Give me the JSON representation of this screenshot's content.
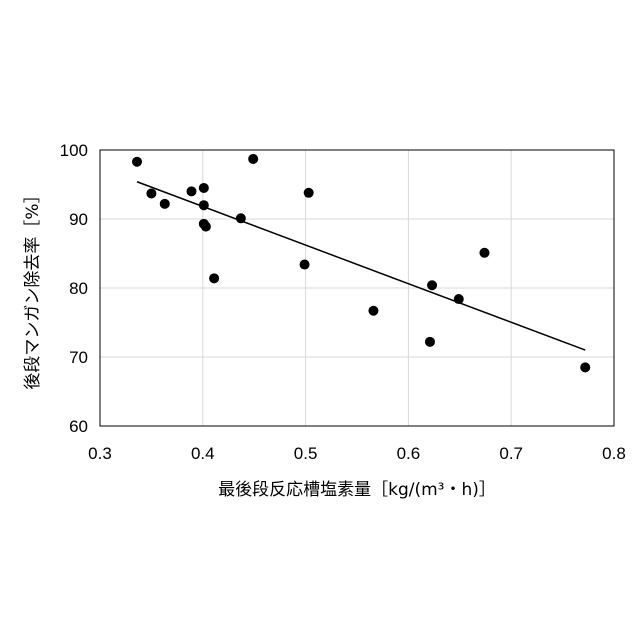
{
  "chart_data": {
    "type": "scatter",
    "title": "",
    "xlabel": "最後段反応槽塩素量［kg/(m³・h)］",
    "ylabel": "後段マンガン除去率［%］",
    "xlim": [
      0.3,
      0.8
    ],
    "ylim": [
      60,
      100
    ],
    "xticks": [
      0.3,
      0.4,
      0.5,
      0.6,
      0.7,
      0.8
    ],
    "yticks": [
      60,
      70,
      80,
      90,
      100
    ],
    "xtick_labels": [
      "0.3",
      "0.4",
      "0.5",
      "0.6",
      "0.7",
      "0.8"
    ],
    "ytick_labels": [
      "60",
      "70",
      "80",
      "90",
      "100"
    ],
    "grid": true,
    "legend": "none",
    "points": [
      {
        "x": 0.336,
        "y": 98.3
      },
      {
        "x": 0.35,
        "y": 93.7
      },
      {
        "x": 0.363,
        "y": 92.2
      },
      {
        "x": 0.389,
        "y": 94.0
      },
      {
        "x": 0.401,
        "y": 94.5
      },
      {
        "x": 0.401,
        "y": 92.0
      },
      {
        "x": 0.401,
        "y": 89.3
      },
      {
        "x": 0.403,
        "y": 88.9
      },
      {
        "x": 0.411,
        "y": 81.4
      },
      {
        "x": 0.437,
        "y": 90.1
      },
      {
        "x": 0.449,
        "y": 98.7
      },
      {
        "x": 0.499,
        "y": 83.4
      },
      {
        "x": 0.503,
        "y": 93.8
      },
      {
        "x": 0.566,
        "y": 76.7
      },
      {
        "x": 0.621,
        "y": 72.2
      },
      {
        "x": 0.623,
        "y": 80.4
      },
      {
        "x": 0.649,
        "y": 78.4
      },
      {
        "x": 0.674,
        "y": 85.1
      },
      {
        "x": 0.772,
        "y": 68.5
      }
    ],
    "trendline": {
      "x": [
        0.336,
        0.772
      ],
      "y": [
        95.4,
        71.0
      ]
    },
    "colors": {
      "points": "#000000",
      "trendline": "#000000",
      "grid": "#d9d9d9",
      "frame": "#000000"
    }
  }
}
